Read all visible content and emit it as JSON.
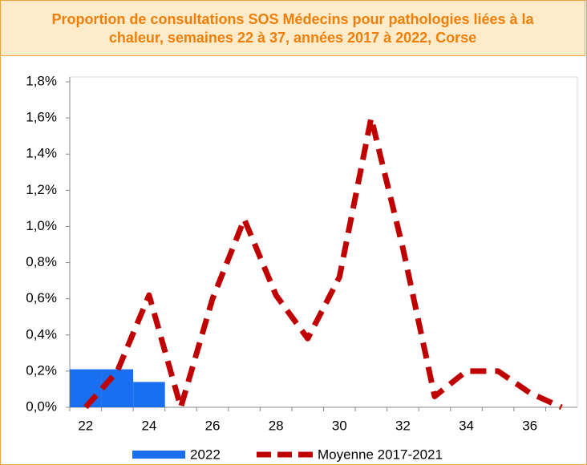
{
  "chart_data": {
    "type": "bar-line",
    "title": "Proportion de consultations SOS Médecins pour pathologies liées à la chaleur, semaines 22 à 37, années 2017 à 2022, Corse",
    "categories": [
      "22",
      null,
      "24",
      null,
      "26",
      null,
      "28",
      null,
      "30",
      null,
      "32",
      null,
      "34",
      null,
      "36",
      null
    ],
    "series": [
      {
        "name": "2022",
        "type": "bar",
        "color": "#1a6ff0",
        "values": [
          0.21,
          0.21,
          0.14,
          null,
          null,
          null,
          null,
          null,
          null,
          null,
          null,
          null,
          null,
          null,
          null,
          null
        ]
      },
      {
        "name": "Moyenne 2017-2021",
        "type": "line",
        "color": "#c00000",
        "values": [
          0.0,
          0.2,
          0.62,
          0.0,
          0.6,
          1.04,
          0.62,
          0.38,
          0.72,
          1.6,
          0.88,
          0.06,
          0.2,
          0.2,
          0.08,
          0.0
        ]
      }
    ],
    "ylim": [
      0,
      1.8
    ],
    "yticks": [
      {
        "value": 0,
        "label": "0,0%"
      },
      {
        "value": 0.2,
        "label": "0,2%"
      },
      {
        "value": 0.4,
        "label": "0,4%"
      },
      {
        "value": 0.6,
        "label": "0,6%"
      },
      {
        "value": 0.8,
        "label": "0,8%"
      },
      {
        "value": 1.0,
        "label": "1,0%"
      },
      {
        "value": 1.2,
        "label": "1,2%"
      },
      {
        "value": 1.4,
        "label": "1,4%"
      },
      {
        "value": 1.6,
        "label": "1,6%"
      },
      {
        "value": 1.8,
        "label": "1,8%"
      }
    ]
  }
}
